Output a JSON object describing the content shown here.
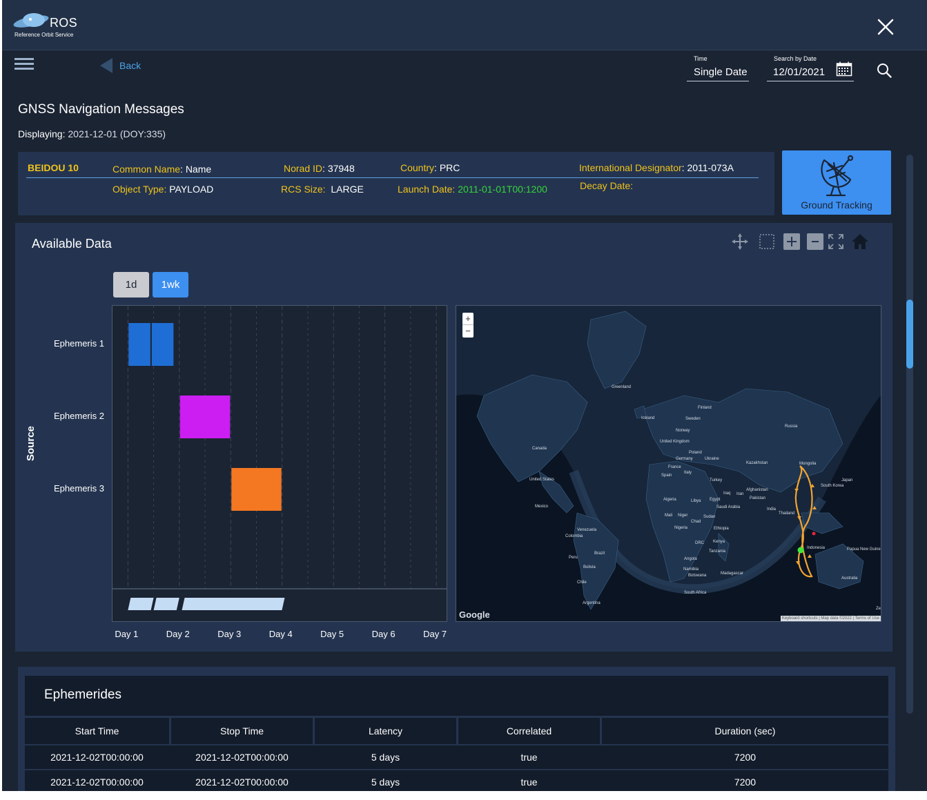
{
  "header": {
    "logo_title": "ROS",
    "logo_subtitle": "Reference Orbit Service"
  },
  "nav": {
    "back_label": "Back",
    "time_label": "Time",
    "time_value": "Single Date",
    "date_label": "Search by Date",
    "date_value": "12/01/2021"
  },
  "page": {
    "title": "GNSS Navigation Messages",
    "displaying_label": "Displaying:",
    "displaying_value": "2021-12-01 (DOY:335)"
  },
  "satellite": {
    "name": "BEIDOU 10",
    "common_name_label": "Common Name",
    "common_name": "Name",
    "norad_label": "Norad ID",
    "norad": "37948",
    "country_label": "Country",
    "country": "PRC",
    "intl_label": "International Designator",
    "intl": "2011-073A",
    "object_type_label": "Object Type:",
    "object_type": "PAYLOAD",
    "rcs_label": "RCS Size:",
    "rcs": "LARGE",
    "launch_label": "Launch Date:",
    "launch": "2011-01-01T00:1200",
    "decay_label": "Decay Date:",
    "decay": ""
  },
  "ground_tracking": {
    "label": "Ground Tracking"
  },
  "available_data": {
    "title": "Available Data",
    "ranges": [
      "1d",
      "1wk"
    ],
    "selected_range": "1wk"
  },
  "chart_data": {
    "type": "gantt",
    "xlabel": "",
    "ylabel": "Source",
    "x_ticks": [
      "Day 1",
      "Day 2",
      "Day 3",
      "Day 4",
      "Day 5",
      "Day 6",
      "Day 7"
    ],
    "xlim": [
      0.7,
      7.2
    ],
    "categories": [
      "Ephemeris 1",
      "Ephemeris 2",
      "Ephemeris 3"
    ],
    "bars": [
      {
        "category": "Ephemeris 1",
        "start": 1.0,
        "end": 1.45,
        "color": "#1f6ed6"
      },
      {
        "category": "Ephemeris 1",
        "start": 1.45,
        "end": 1.9,
        "color": "#1f6ed6"
      },
      {
        "category": "Ephemeris 2",
        "start": 2.0,
        "end": 3.0,
        "color": "#cc1ef2"
      },
      {
        "category": "Ephemeris 3",
        "start": 3.0,
        "end": 4.0,
        "color": "#f47722"
      }
    ],
    "overview": [
      [
        1.0,
        1.5
      ],
      [
        1.5,
        2.0
      ],
      [
        2.05,
        4.05
      ]
    ],
    "overview_color": "#c5dcf5",
    "grid": true
  },
  "map": {
    "zoom_in": "+",
    "zoom_out": "−",
    "provider": "Google",
    "attribution": "Keyboard shortcuts | Map data ©2022 | Terms of Use",
    "labels": [
      "Greenland",
      "Iceland",
      "Sweden",
      "Finland",
      "Norway",
      "United Kingdom",
      "Russia",
      "Canada",
      "Poland",
      "Germany",
      "Ukraine",
      "France",
      "Italy",
      "Kazakhstan",
      "Mongolia",
      "Spain",
      "Turkey",
      "United States",
      "Afghanistan",
      "Algeria",
      "Libya",
      "Egypt",
      "Iraq",
      "Iran",
      "Pakistan",
      "Japan",
      "South Korea",
      "Mexico",
      "Saudi Arabia",
      "India",
      "Thailand",
      "Mali",
      "Niger",
      "Chad",
      "Sudan",
      "Venezuela",
      "Nigeria",
      "Ethiopia",
      "Colombia",
      "DRC",
      "Kenya",
      "Indonesia",
      "Papua New Guinea",
      "Brazil",
      "Peru",
      "Tanzania",
      "Angola",
      "Bolivia",
      "Namibia",
      "Madagascar",
      "Botswana",
      "Australia",
      "Chile",
      "South Africa",
      "Argentina",
      "Ze"
    ]
  },
  "ephemerides": {
    "title": "Ephemerides",
    "columns": [
      "Start Time",
      "Stop Time",
      "Latency",
      "Correlated",
      "Duration (sec)"
    ],
    "rows": [
      {
        "start": "2021-12-02T00:00:00",
        "stop": "2021-12-02T00:00:00",
        "latency": "5 days",
        "correlated": "true",
        "duration": "7200"
      },
      {
        "start": "2021-12-02T00:00:00",
        "stop": "2021-12-02T00:00:00",
        "latency": "5 days",
        "correlated": "true",
        "duration": "7200"
      }
    ]
  },
  "colors": {
    "accent": "#3d8ff0",
    "label_yellow": "#f0c31c",
    "status_green": "#35d43a",
    "panel": "#243450",
    "background": "#1b2433"
  }
}
